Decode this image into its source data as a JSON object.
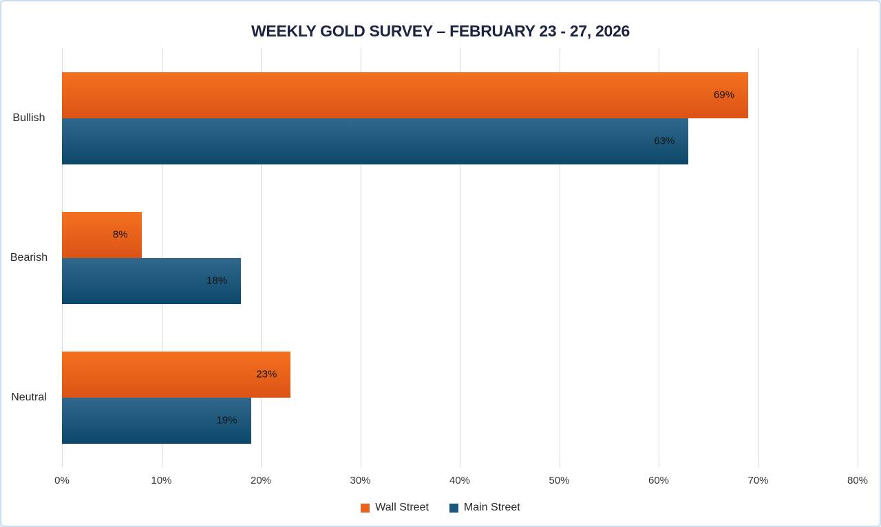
{
  "chart_data": {
    "type": "bar",
    "orientation": "horizontal",
    "title": "WEEKLY GOLD SURVEY – FEBRUARY 23 - 27, 2026",
    "categories": [
      "Bullish",
      "Bearish",
      "Neutral"
    ],
    "series": [
      {
        "name": "Wall Street",
        "values": [
          69,
          8,
          23
        ],
        "labels": [
          "69%",
          "8%",
          "23%"
        ],
        "color_top": "#f4711f",
        "color_bottom": "#db5316",
        "legend_color": "#e7641f"
      },
      {
        "name": "Main Street",
        "values": [
          63,
          18,
          19
        ],
        "labels": [
          "63%",
          "18%",
          "19%"
        ],
        "color_top": "#31688c",
        "color_bottom": "#0c4769",
        "legend_color": "#1a567e"
      }
    ],
    "xlabel": "",
    "ylabel": "",
    "axis": {
      "min": 0,
      "max": 80,
      "step": 10,
      "tick_labels": [
        "0%",
        "10%",
        "20%",
        "30%",
        "40%",
        "50%",
        "60%",
        "70%",
        "80%"
      ]
    },
    "grid": true,
    "legend_position": "bottom",
    "colors": {
      "title": "#1c2340",
      "grid": "#d8d8d8",
      "value_label": "#141414",
      "frame_border": "#c9def1"
    }
  }
}
